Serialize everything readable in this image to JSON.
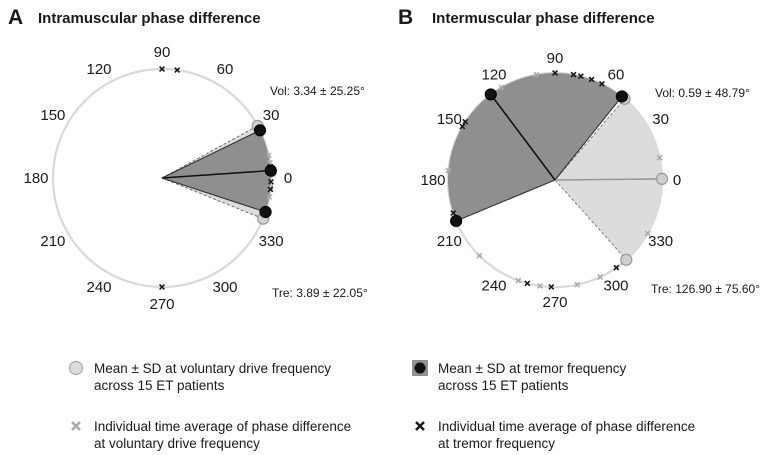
{
  "chart_data": [
    {
      "type": "polar",
      "panel_label": "A",
      "title": "Intramuscular phase difference",
      "angle_ticks": [
        0,
        30,
        60,
        90,
        120,
        150,
        180,
        210,
        240,
        270,
        300,
        330
      ],
      "voluntary": {
        "mean_deg": 3.34,
        "sd_deg": 25.25,
        "label": "Vol: 3.34 ± 25.25°",
        "individual_deg": [
          5,
          8,
          3,
          355,
          12,
          350
        ]
      },
      "tremor": {
        "mean_deg": 3.89,
        "sd_deg": 22.05,
        "label": "Tre: 3.89 ± 22.05°",
        "individual_deg": [
          90,
          82,
          270,
          2,
          6,
          358,
          354
        ]
      }
    },
    {
      "type": "polar",
      "panel_label": "B",
      "title": "Intermuscular phase difference",
      "angle_ticks": [
        0,
        30,
        60,
        90,
        120,
        150,
        180,
        210,
        240,
        270,
        300,
        330
      ],
      "voluntary": {
        "mean_deg": 0.59,
        "sd_deg": 48.79,
        "label": "Vol: 0.59 ± 48.79°",
        "individual_deg": [
          12,
          120,
          175,
          250,
          262,
          282,
          295,
          330,
          310,
          225,
          100
        ]
      },
      "tremor": {
        "mean_deg": 126.9,
        "sd_deg": 75.6,
        "label": "Tre: 126.90 ± 75.60°",
        "individual_deg": [
          90,
          80,
          76,
          70,
          64,
          150,
          147,
          198,
          255,
          268,
          305
        ]
      }
    }
  ],
  "legend": [
    {
      "symbol": "light-circle-icon",
      "text": "Mean ± SD at voluntary drive frequency\nacross 15 ET patients"
    },
    {
      "symbol": "dark-circle-icon",
      "text": "Mean ± SD at tremor frequency\nacross 15 ET patients"
    },
    {
      "symbol": "gray-x-icon",
      "text": "Individual time average of phase difference\nat voluntary drive frequency"
    },
    {
      "symbol": "black-x-icon",
      "text": "Individual time average of phase difference\nat tremor frequency"
    }
  ],
  "colors": {
    "voluntary_fill": "#dcdcdc",
    "voluntary_marker": "#cfcfcf",
    "voluntary_x": "#aaaaaa",
    "tremor_fill": "#8f8f8f",
    "tremor_marker": "#111111",
    "tremor_x": "#1a1a1a",
    "ring": "#d9d9d9"
  }
}
